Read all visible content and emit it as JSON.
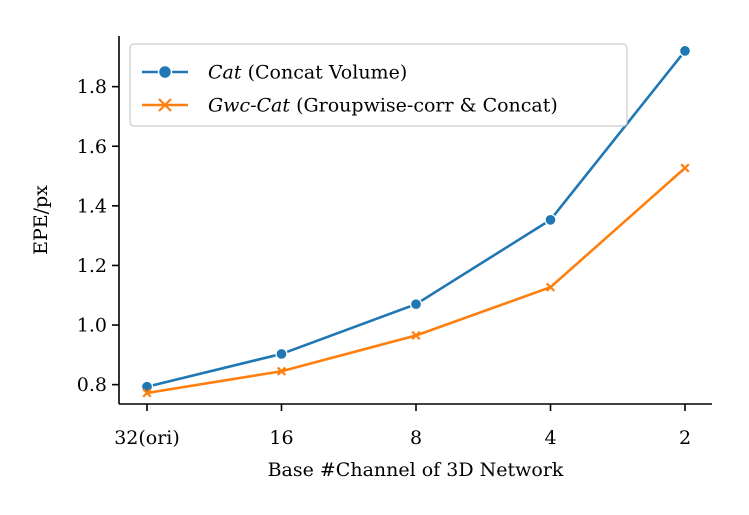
{
  "chart_data": {
    "type": "line",
    "xlabel": "Base #Channel of 3D Network",
    "ylabel": "EPE/px",
    "categories": [
      "32(ori)",
      "16",
      "8",
      "4",
      "2"
    ],
    "ylim": [
      0.735,
      1.97
    ],
    "yticks": [
      0.8,
      1.0,
      1.2,
      1.4,
      1.6,
      1.8
    ],
    "yticklabels": [
      "0.8",
      "1.0",
      "1.2",
      "1.4",
      "1.6",
      "1.8"
    ],
    "grid": false,
    "legend_position": "top-left",
    "series": [
      {
        "name": "Cat",
        "name_suffix": "(Concat Volume)",
        "marker": "circle",
        "color": "#1f77b4",
        "values": [
          0.793,
          0.903,
          1.07,
          1.353,
          1.92
        ]
      },
      {
        "name": "Gwc-Cat",
        "name_suffix": "(Groupwise-corr & Concat)",
        "marker": "x",
        "color": "#ff7f0e",
        "values": [
          0.772,
          0.845,
          0.965,
          1.127,
          1.527
        ]
      }
    ]
  }
}
